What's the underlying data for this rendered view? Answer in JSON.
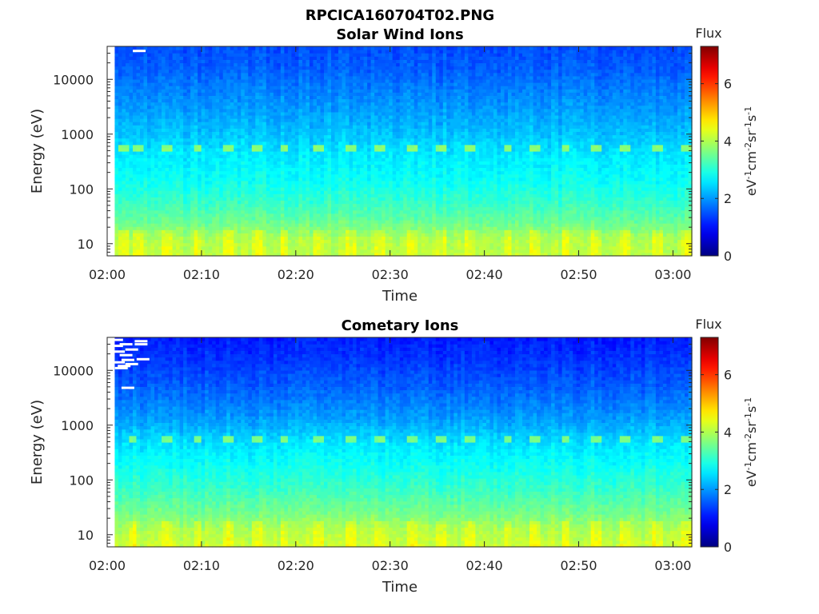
{
  "figure_title": "RPCICA160704T02.PNG",
  "colorbar": {
    "header": "Flux",
    "unit_label": "eV-1cm-2sr-1s-1",
    "unit_parts": [
      {
        "t": "eV",
        "sup": false
      },
      {
        "t": "-1",
        "sup": true
      },
      {
        "t": "cm",
        "sup": false
      },
      {
        "t": "-2",
        "sup": true
      },
      {
        "t": "sr",
        "sup": false
      },
      {
        "t": "-1",
        "sup": true
      },
      {
        "t": "s",
        "sup": false
      },
      {
        "t": "-1",
        "sup": true
      }
    ],
    "ticks": [
      "0",
      "2",
      "4",
      "6"
    ],
    "range": [
      0,
      7.3
    ],
    "colormap": "jet"
  },
  "chart_data": [
    {
      "type": "heatmap",
      "title": "Solar Wind Ions",
      "xlabel": "Time",
      "ylabel": "Energy (eV)",
      "x_tick_labels": [
        "02:00",
        "02:10",
        "02:20",
        "02:30",
        "02:40",
        "02:50",
        "03:00"
      ],
      "x_tick_minutes": [
        0,
        10,
        20,
        30,
        40,
        50,
        60
      ],
      "xlim_minutes": [
        0,
        62
      ],
      "data_start_minutes": 0.8,
      "y_scale": "log",
      "ylim": [
        6,
        40000
      ],
      "y_tick_values": [
        10,
        100,
        1000,
        10000
      ],
      "y_tick_labels": [
        "10",
        "100",
        "1000",
        "10000"
      ],
      "flux_profile": [
        {
          "energy": 6,
          "flux": 4.1
        },
        {
          "energy": 12,
          "flux": 4.0
        },
        {
          "energy": 25,
          "flux": 3.5
        },
        {
          "energy": 60,
          "flux": 3.1
        },
        {
          "energy": 150,
          "flux": 2.8
        },
        {
          "energy": 400,
          "flux": 2.6
        },
        {
          "energy": 1500,
          "flux": 2.2
        },
        {
          "energy": 5000,
          "flux": 1.9
        },
        {
          "energy": 15000,
          "flux": 1.6
        },
        {
          "energy": 40000,
          "flux": 1.45
        }
      ],
      "periodic_band": {
        "energy": 560,
        "flux": 3.7
      },
      "band_times_minutes": [
        1.7,
        3.3,
        6.4,
        9.6,
        12.8,
        16.0,
        18.8,
        22.5,
        25.7,
        29.0,
        32.2,
        35.3,
        38.5,
        42.5,
        45.4,
        48.6,
        51.8,
        55.0,
        58.4,
        61.4
      ],
      "saturated_cells": [
        {
          "t": 3.4,
          "energy": 33000
        }
      ]
    },
    {
      "type": "heatmap",
      "title": "Cometary Ions",
      "xlabel": "Time",
      "ylabel": "Energy (eV)",
      "x_tick_labels": [
        "02:00",
        "02:10",
        "02:20",
        "02:30",
        "02:40",
        "02:50",
        "03:00"
      ],
      "x_tick_minutes": [
        0,
        10,
        20,
        30,
        40,
        50,
        60
      ],
      "xlim_minutes": [
        0,
        62
      ],
      "data_start_minutes": 0.8,
      "y_scale": "log",
      "ylim": [
        6,
        40000
      ],
      "y_tick_values": [
        10,
        100,
        1000,
        10000
      ],
      "y_tick_labels": [
        "10",
        "100",
        "1000",
        "10000"
      ],
      "flux_profile": [
        {
          "energy": 6,
          "flux": 4.2
        },
        {
          "energy": 12,
          "flux": 4.0
        },
        {
          "energy": 25,
          "flux": 3.6
        },
        {
          "energy": 60,
          "flux": 3.2
        },
        {
          "energy": 150,
          "flux": 2.9
        },
        {
          "energy": 400,
          "flux": 2.6
        },
        {
          "energy": 1500,
          "flux": 2.0
        },
        {
          "energy": 5000,
          "flux": 1.6
        },
        {
          "energy": 15000,
          "flux": 1.3
        },
        {
          "energy": 40000,
          "flux": 1.1
        }
      ],
      "periodic_band": {
        "energy": 560,
        "flux": 3.6
      },
      "band_times_minutes": [
        2.7,
        6.4,
        9.6,
        12.8,
        16.0,
        18.8,
        22.5,
        25.7,
        29.0,
        32.2,
        35.3,
        38.5,
        42.5,
        45.4,
        48.6,
        51.8,
        55.0,
        58.4,
        61.4
      ],
      "saturated_cells": [
        {
          "t": 1.0,
          "energy": 36000
        },
        {
          "t": 1.0,
          "energy": 28000
        },
        {
          "t": 1.2,
          "energy": 22000
        },
        {
          "t": 1.2,
          "energy": 14000
        },
        {
          "t": 1.5,
          "energy": 11000
        },
        {
          "t": 2.0,
          "energy": 30000
        },
        {
          "t": 2.0,
          "energy": 19000
        },
        {
          "t": 2.2,
          "energy": 15500
        },
        {
          "t": 2.6,
          "energy": 24000
        },
        {
          "t": 2.6,
          "energy": 13000
        },
        {
          "t": 1.8,
          "energy": 12000
        },
        {
          "t": 3.6,
          "energy": 34000
        },
        {
          "t": 3.6,
          "energy": 30000
        },
        {
          "t": 3.8,
          "energy": 16000
        },
        {
          "t": 2.2,
          "energy": 4800
        }
      ]
    }
  ]
}
